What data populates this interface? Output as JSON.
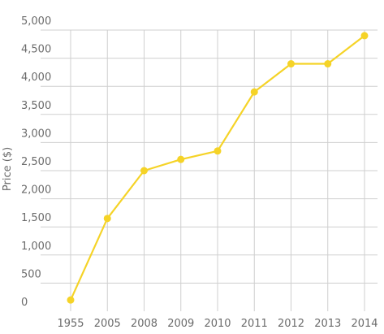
{
  "chart_data": {
    "type": "line",
    "title": "",
    "xlabel": "",
    "ylabel": "Price ($)",
    "categories": [
      "1955",
      "2005",
      "2008",
      "2009",
      "2010",
      "2011",
      "2012",
      "2013",
      "2014"
    ],
    "series": [
      {
        "values": [
          200,
          1650,
          2500,
          2700,
          2850,
          3900,
          4400,
          4400,
          4900
        ]
      }
    ],
    "ylim": [
      0,
      5000
    ],
    "yticks": [
      0,
      500,
      1000,
      1500,
      2000,
      2500,
      3000,
      3500,
      4000,
      4500,
      5000
    ],
    "ytick_labels": [
      "0",
      "500",
      "1,000",
      "1,500",
      "2,000",
      "2,500",
      "3,000",
      "3,500",
      "4,000",
      "4,500",
      "5,000"
    ],
    "grid": true,
    "legend": "none",
    "colors": {
      "series": "#f5d327",
      "grid": "#cfcfcf",
      "text": "#6b6b6b"
    }
  }
}
